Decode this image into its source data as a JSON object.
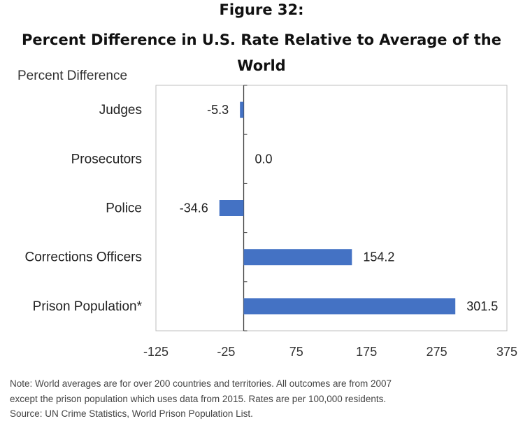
{
  "title_line1": "Figure 32:",
  "title_line2": "Percent Difference in U.S. Rate Relative to Average of the",
  "title_line3": "World",
  "y_axis_label": "Percent Difference",
  "chart_data": {
    "type": "bar",
    "orientation": "horizontal",
    "categories": [
      "Judges",
      "Prosecutors",
      "Police",
      "Corrections Officers",
      "Prison Population*"
    ],
    "values": [
      -5.3,
      0.0,
      -34.6,
      154.2,
      301.5
    ],
    "value_labels": [
      "-5.3",
      "0.0",
      "-34.6",
      "154.2",
      "301.5"
    ],
    "x_ticks": [
      -125,
      -25,
      75,
      175,
      275,
      375
    ],
    "xlim": [
      -125,
      375
    ],
    "ylabel": "Percent Difference",
    "bar_color": "#4472c4",
    "grid": false,
    "legend": "none"
  },
  "notes": [
    "Note: World averages are for over 200 countries and territories. All outcomes are from 2007",
    "except the prison population which uses data from 2015. Rates are per 100,000 residents.",
    "Source: UN Crime Statistics, World Prison Population List."
  ]
}
